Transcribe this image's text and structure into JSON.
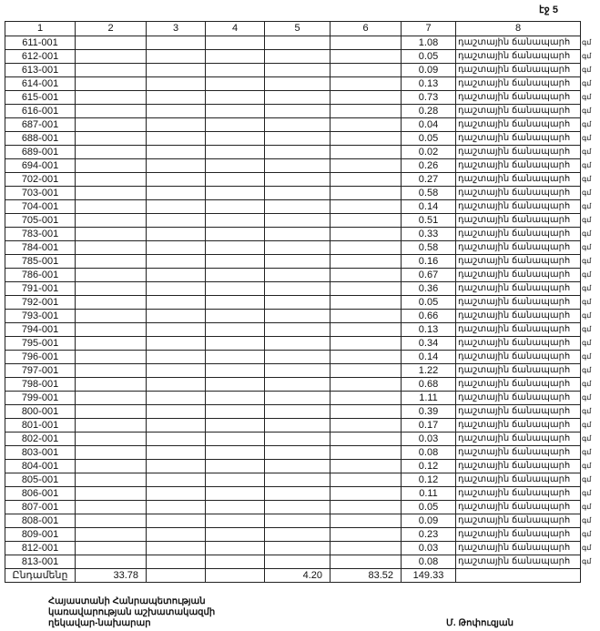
{
  "page_label": "էջ 5",
  "columns": [
    "1",
    "2",
    "3",
    "4",
    "5",
    "6",
    "7",
    "8"
  ],
  "road_type": "դաշտային ճանապարհ",
  "suffix": "գմ",
  "rows": [
    {
      "id": "611-001",
      "v7": "1.08"
    },
    {
      "id": "612-001",
      "v7": "0.05"
    },
    {
      "id": "613-001",
      "v7": "0.09"
    },
    {
      "id": "614-001",
      "v7": "0.13"
    },
    {
      "id": "615-001",
      "v7": "0.73"
    },
    {
      "id": "616-001",
      "v7": "0.28"
    },
    {
      "id": "687-001",
      "v7": "0.04"
    },
    {
      "id": "688-001",
      "v7": "0.05"
    },
    {
      "id": "689-001",
      "v7": "0.02"
    },
    {
      "id": "694-001",
      "v7": "0.26"
    },
    {
      "id": "702-001",
      "v7": "0.27"
    },
    {
      "id": "703-001",
      "v7": "0.58"
    },
    {
      "id": "704-001",
      "v7": "0.14"
    },
    {
      "id": "705-001",
      "v7": "0.51"
    },
    {
      "id": "783-001",
      "v7": "0.33"
    },
    {
      "id": "784-001",
      "v7": "0.58"
    },
    {
      "id": "785-001",
      "v7": "0.16"
    },
    {
      "id": "786-001",
      "v7": "0.67"
    },
    {
      "id": "791-001",
      "v7": "0.36"
    },
    {
      "id": "792-001",
      "v7": "0.05"
    },
    {
      "id": "793-001",
      "v7": "0.66"
    },
    {
      "id": "794-001",
      "v7": "0.13"
    },
    {
      "id": "795-001",
      "v7": "0.34"
    },
    {
      "id": "796-001",
      "v7": "0.14"
    },
    {
      "id": "797-001",
      "v7": "1.22"
    },
    {
      "id": "798-001",
      "v7": "0.68"
    },
    {
      "id": "799-001",
      "v7": "1.11"
    },
    {
      "id": "800-001",
      "v7": "0.39"
    },
    {
      "id": "801-001",
      "v7": "0.17"
    },
    {
      "id": "802-001",
      "v7": "0.03"
    },
    {
      "id": "803-001",
      "v7": "0.08"
    },
    {
      "id": "804-001",
      "v7": "0.12"
    },
    {
      "id": "805-001",
      "v7": "0.12"
    },
    {
      "id": "806-001",
      "v7": "0.11"
    },
    {
      "id": "807-001",
      "v7": "0.05"
    },
    {
      "id": "808-001",
      "v7": "0.09"
    },
    {
      "id": "809-001",
      "v7": "0.23"
    },
    {
      "id": "812-001",
      "v7": "0.03"
    },
    {
      "id": "813-001",
      "v7": "0.08"
    }
  ],
  "total": {
    "label": "Ընդամենը",
    "c2": "33.78",
    "c3": "",
    "c4": "",
    "c5": "4.20",
    "c6": "83.52",
    "c7": "149.33",
    "c8": ""
  },
  "footer": {
    "line1": "Հայաստանի Հանրապետության",
    "line2": "կառավարության աշխատակազմի",
    "line3": "ղեկավար-նախարար",
    "signatory": "Մ. Թոփուզյան"
  }
}
